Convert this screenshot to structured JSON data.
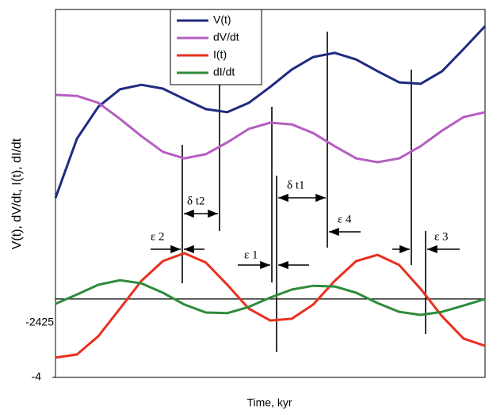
{
  "chart_data": {
    "type": "line",
    "x_label": "Time, kyr",
    "y_label": "V(t), dV/dt, I(t), dI/dt",
    "x": [
      0,
      0.5,
      1,
      1.5,
      2,
      2.5,
      3,
      3.5,
      4,
      4.5,
      5,
      5.5,
      6,
      6.5,
      7,
      7.5,
      8,
      8.5,
      9,
      9.5,
      10
    ],
    "xlim": [
      0,
      10
    ],
    "ylim": [
      -4,
      6.6
    ],
    "yticks": [
      -4
    ],
    "hline": -1.74,
    "legend": "upper center",
    "series": [
      {
        "name": "V(t)",
        "color": "#1f2a80",
        "values": [
          1.17,
          2.88,
          3.8,
          4.3,
          4.43,
          4.32,
          4.02,
          3.73,
          3.64,
          3.91,
          4.37,
          4.87,
          5.23,
          5.35,
          5.16,
          4.82,
          4.5,
          4.46,
          4.82,
          5.46,
          6.12
        ]
      },
      {
        "name": "dV/dt",
        "color": "#b45fc0",
        "values": [
          4.14,
          4.11,
          3.91,
          3.45,
          2.95,
          2.5,
          2.31,
          2.43,
          2.77,
          3.16,
          3.34,
          3.29,
          3.04,
          2.66,
          2.31,
          2.2,
          2.31,
          2.66,
          3.11,
          3.5,
          3.64
        ]
      },
      {
        "name": "I(t)",
        "color": "#e8301f",
        "values": [
          -3.43,
          -3.34,
          -2.81,
          -2.02,
          -1.22,
          -0.65,
          -0.42,
          -0.69,
          -1.33,
          -2.02,
          -2.36,
          -2.31,
          -1.9,
          -1.22,
          -0.65,
          -0.47,
          -0.76,
          -1.45,
          -2.24,
          -2.88,
          -3.09
        ]
      },
      {
        "name": "dI/dt",
        "color": "#2e8b3a",
        "values": [
          -1.88,
          -1.61,
          -1.33,
          -1.2,
          -1.29,
          -1.56,
          -1.9,
          -2.13,
          -2.15,
          -1.97,
          -1.7,
          -1.47,
          -1.36,
          -1.38,
          -1.56,
          -1.86,
          -2.11,
          -2.2,
          -2.11,
          -1.93,
          -1.74
        ]
      }
    ],
    "annotations": [
      "-2425",
      "δ t2",
      "δ t1",
      "ε 2",
      "ε 1",
      "ε 4",
      "ε 3"
    ]
  }
}
